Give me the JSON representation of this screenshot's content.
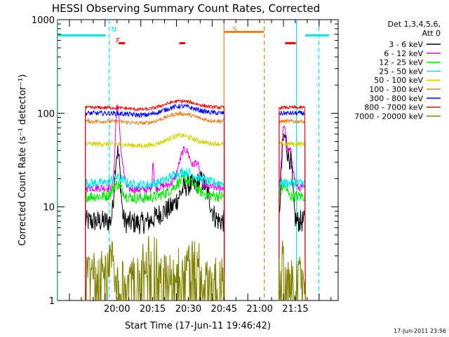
{
  "chart_data": {
    "type": "line",
    "title": "HESSI Observing Summary Count Rates, Corrected",
    "xlabel": "Start Time (17-Jun-11 19:46:42)",
    "ylabel": "Corrected Count Rate (s⁻¹ detector⁻¹)",
    "ylim": [
      1,
      1000
    ],
    "yscale": "log",
    "xlim_minutes_after_start": [
      -11.7,
      106.3
    ],
    "x_tick_labels": [
      "20:00",
      "20:15",
      "20:30",
      "20:45",
      "21:00",
      "21:15"
    ],
    "x_tick_minutes_after_start": [
      13.3,
      28.3,
      43.3,
      58.3,
      73.3,
      88.3
    ],
    "y_tick_labels": [
      "1",
      "10",
      "100",
      "1000"
    ],
    "y_tick_values": [
      1,
      10,
      100,
      1000
    ],
    "legend_title": [
      "Det 1,3,4,5,6,",
      "Att 0"
    ],
    "legend_position": "right",
    "timestamp": "17-Jun-2011 23:56",
    "flags": [
      {
        "label": "N",
        "color": "#00e0e0",
        "minute": 10
      },
      {
        "label": "F",
        "color": "#e00000",
        "minute": 12
      },
      {
        "label": "S",
        "color": "#e08020",
        "minute": 61
      }
    ],
    "bars": [
      {
        "color": "#00e0e0",
        "y": 680,
        "x": [
          -11.7,
          8.5
        ]
      },
      {
        "color": "#00e0e0",
        "y": 680,
        "x": [
          92.5,
          102.5
        ]
      },
      {
        "color": "#e08020",
        "y": 740,
        "x": [
          58.3,
          75.0
        ]
      },
      {
        "color": "#e00000",
        "y": 560,
        "x": [
          14,
          16.7
        ]
      },
      {
        "color": "#e00000",
        "y": 560,
        "x": [
          39.5,
          42
        ]
      },
      {
        "color": "#e00000",
        "y": 560,
        "x": [
          84,
          88.5
        ]
      }
    ],
    "vlines": [
      {
        "color": "#00e0e0",
        "dash": false,
        "x": -11.7
      },
      {
        "color": "#00e0e0",
        "dash": true,
        "x": 10
      },
      {
        "color": "#e08020",
        "dash": false,
        "x": 58.3
      },
      {
        "color": "#e08020",
        "dash": true,
        "x": 75.2
      },
      {
        "color": "#00e0e0",
        "dash": false,
        "x": 88.8
      },
      {
        "color": "#00e0e0",
        "dash": true,
        "x": 98.2
      }
    ],
    "segments": [
      [
        0,
        58.5
      ],
      [
        81.5,
        92.5
      ]
    ],
    "series": [
      {
        "name": "3 - 6 keV",
        "color": "#000000",
        "base": 7,
        "noise": 0.14,
        "spikes": [
          [
            13.5,
            4.5,
            1.3
          ],
          [
            33,
            0.2,
            5
          ],
          [
            43.5,
            1.2,
            5
          ],
          [
            50,
            1.0,
            3
          ],
          [
            83.5,
            6.5,
            1.1
          ],
          [
            86,
            3.5,
            1.2
          ]
        ]
      },
      {
        "name": "6 - 12 keV",
        "color": "#e000e0",
        "base": 16,
        "noise": 0.05,
        "spikes": [
          [
            13.3,
            2.9,
            0.9
          ],
          [
            14.5,
            1.5,
            1.6
          ],
          [
            28.5,
            1.0,
            0.4
          ],
          [
            42,
            1.3,
            3
          ],
          [
            47,
            0.6,
            1.5
          ],
          [
            83.5,
            3.2,
            1.0
          ],
          [
            86,
            1.5,
            1.5
          ]
        ]
      },
      {
        "name": "12 - 25 keV",
        "color": "#00e000",
        "base": 13,
        "noise": 0.07,
        "spikes": [
          [
            13.5,
            0.35,
            2.5
          ],
          [
            42,
            0.35,
            5
          ],
          [
            83.5,
            0.3,
            1.5
          ]
        ]
      },
      {
        "name": "25 - 50 keV",
        "color": "#00e0e0",
        "base": 18,
        "noise": 0.06,
        "spikes": [
          [
            13.5,
            0.15,
            3
          ],
          [
            42,
            0.18,
            6
          ]
        ]
      },
      {
        "name": "50 - 100 keV",
        "color": "#d0d000",
        "base": 47,
        "noise": 0.03,
        "spikes": [
          [
            40,
            0.1,
            6
          ]
        ]
      },
      {
        "name": "100 - 300 keV",
        "color": "#e08020",
        "base": 82,
        "noise": 0.025,
        "spikes": [
          [
            40,
            0.08,
            8
          ]
        ]
      },
      {
        "name": "300 - 800 keV",
        "color": "#0000e0",
        "base": 100,
        "noise": 0.03,
        "spikes": [
          [
            40,
            0.06,
            8
          ]
        ]
      },
      {
        "name": "800 - 7000 keV",
        "color": "#e00000",
        "base": 115,
        "noise": 0.02,
        "spikes": [
          [
            40,
            0.05,
            8
          ]
        ]
      },
      {
        "name": "7000 - 20000 keV",
        "color": "#808000",
        "base": 2.5,
        "noise": 0.5,
        "spikes": []
      }
    ]
  }
}
